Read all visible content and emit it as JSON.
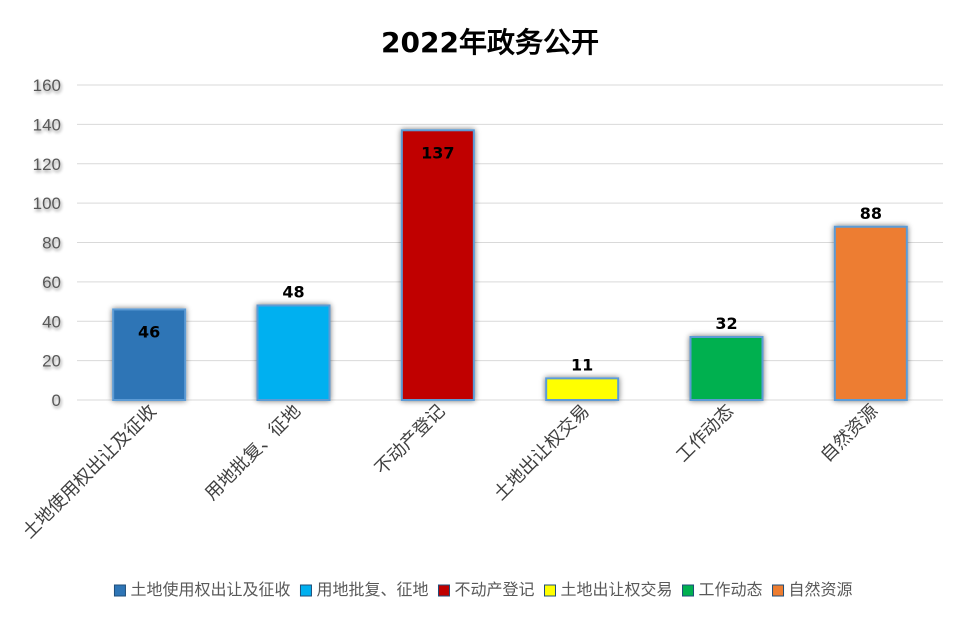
{
  "chart_data": {
    "type": "bar",
    "title": "2022年政务公开",
    "xlabel": "",
    "ylabel": "",
    "ylim": [
      0,
      160
    ],
    "yticks": [
      0,
      20,
      40,
      60,
      80,
      100,
      120,
      140,
      160
    ],
    "grid": true,
    "legend_position": "bottom",
    "data_labels": true,
    "categories": [
      "土地使用权出让及征收",
      "用地批复、征地",
      "不动产登记",
      "土地出让权交易",
      "工作动态",
      "自然资源"
    ],
    "values": [
      46,
      48,
      137,
      11,
      32,
      88
    ],
    "colors": [
      "#2E75B6",
      "#00B0F0",
      "#C00000",
      "#FFFF00",
      "#00B050",
      "#ED7D31"
    ],
    "bar_border_color": "#5B9BD5",
    "gridline_color": "#D9D9D9"
  }
}
